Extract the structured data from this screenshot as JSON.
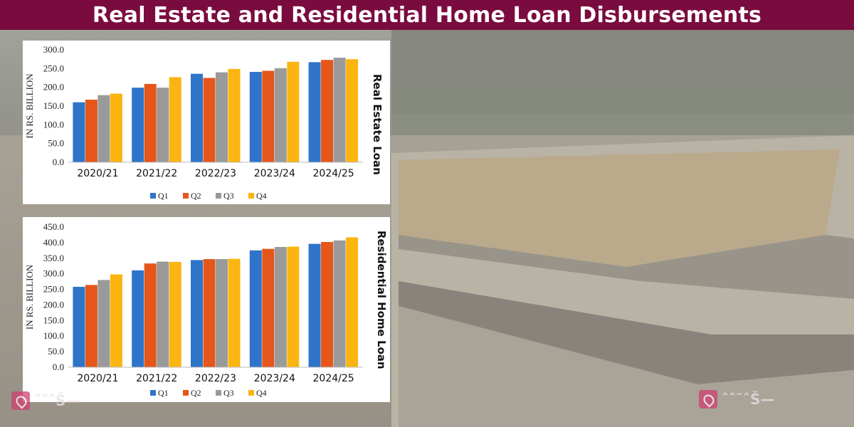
{
  "header": {
    "title": "Real Estate and Residential Home Loan Disbursements"
  },
  "colors": {
    "title_bar": "#7a0b3f",
    "Q1": "#2e75c9",
    "Q2": "#e5561a",
    "Q3": "#9a9a9a",
    "Q4": "#fbb511"
  },
  "watermark": {
    "left_text": "ˆ˜ˆŠ—",
    "right_text": "ˆˆ˜ˆŠ—"
  },
  "chart_data": [
    {
      "type": "bar",
      "side_label": "Real Estate Loan",
      "ylabel": "IN RS. BILLION",
      "categories": [
        "2020/21",
        "2021/22",
        "2022/23",
        "2023/24",
        "2024/25"
      ],
      "ylim": [
        0,
        300
      ],
      "yticks": [
        "0.0",
        "50.0",
        "100.0",
        "150.0",
        "200.0",
        "250.0",
        "300.0"
      ],
      "series": [
        {
          "name": "Q1",
          "values": [
            160,
            199,
            236,
            241,
            267
          ]
        },
        {
          "name": "Q2",
          "values": [
            167,
            209,
            225,
            244,
            273
          ]
        },
        {
          "name": "Q3",
          "values": [
            179,
            199,
            240,
            251,
            279
          ]
        },
        {
          "name": "Q4",
          "values": [
            183,
            227,
            249,
            268,
            275
          ]
        }
      ],
      "legend_position": "bottom"
    },
    {
      "type": "bar",
      "side_label": "Residential Home Loan",
      "ylabel": "IN RS. BILLION",
      "categories": [
        "2020/21",
        "2021/22",
        "2022/23",
        "2023/24",
        "2024/25"
      ],
      "ylim": [
        0,
        450
      ],
      "yticks": [
        "0.0",
        "50.0",
        "100.0",
        "150.0",
        "200.0",
        "250.0",
        "300.0",
        "350.0",
        "400.0",
        "450.0"
      ],
      "series": [
        {
          "name": "Q1",
          "values": [
            258,
            311,
            344,
            375,
            396
          ]
        },
        {
          "name": "Q2",
          "values": [
            264,
            333,
            347,
            380,
            402
          ]
        },
        {
          "name": "Q3",
          "values": [
            280,
            339,
            347,
            386,
            407
          ]
        },
        {
          "name": "Q4",
          "values": [
            298,
            338,
            348,
            387,
            417
          ]
        }
      ],
      "legend_position": "bottom"
    }
  ]
}
